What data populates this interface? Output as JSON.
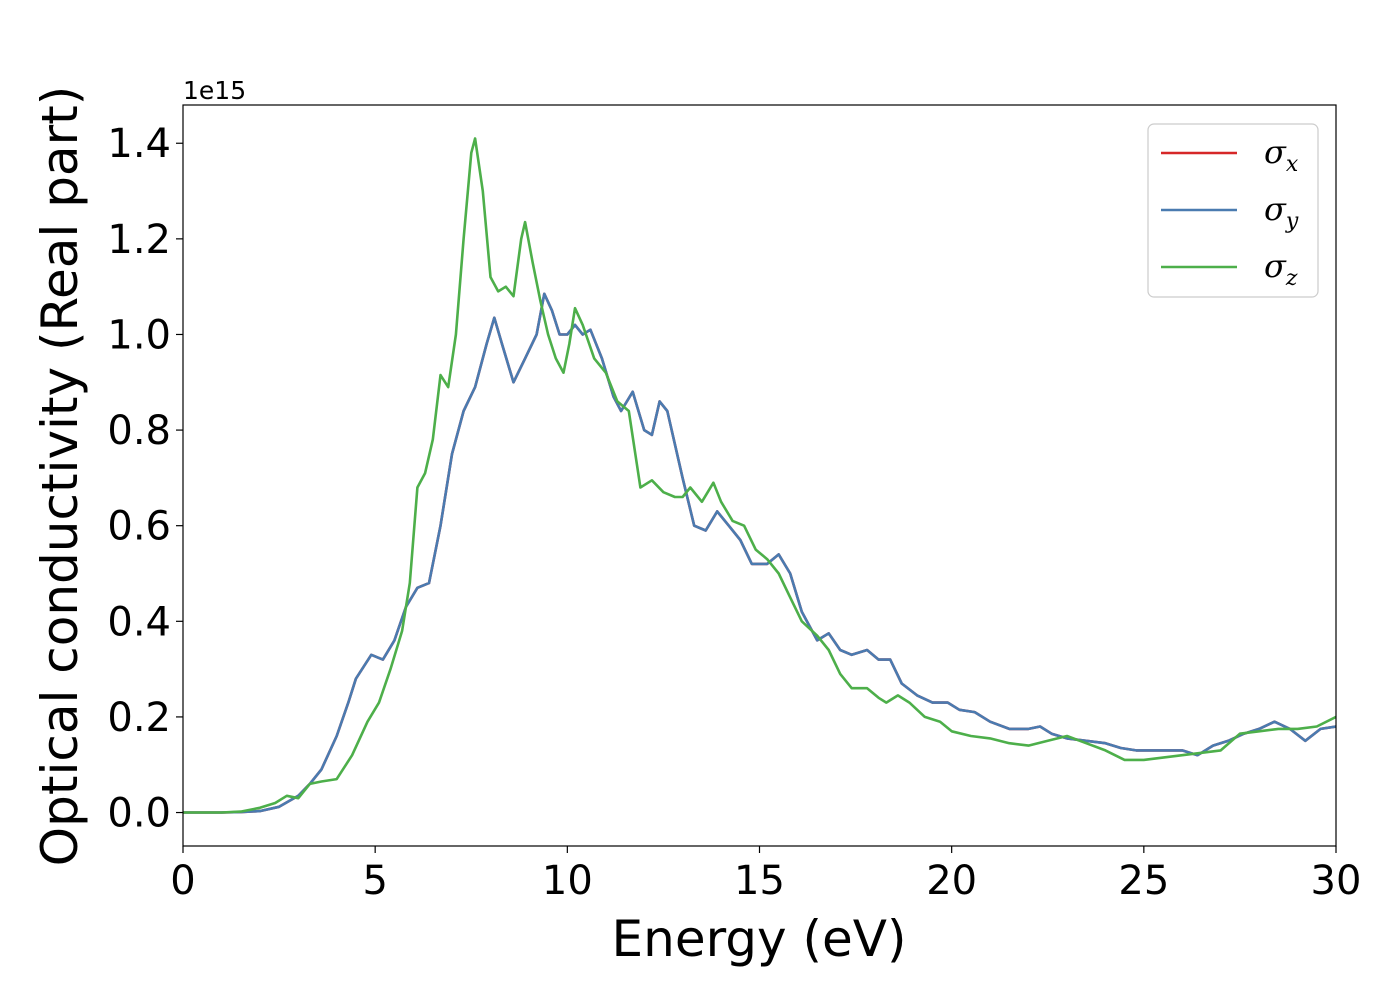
{
  "chart_data": {
    "type": "line",
    "title": "",
    "xlabel": "Energy (eV)",
    "ylabel": "Optical conductivity (Real part)",
    "y_offset_label": "1e15",
    "xlim": [
      0,
      30
    ],
    "ylim": [
      -0.07,
      1.48
    ],
    "x_ticks": [
      0,
      5,
      10,
      15,
      20,
      25,
      30
    ],
    "y_ticks": [
      0.0,
      0.2,
      0.4,
      0.6,
      0.8,
      1.0,
      1.2,
      1.4
    ],
    "x_tick_labels": [
      "0",
      "5",
      "10",
      "15",
      "20",
      "25",
      "30"
    ],
    "y_tick_labels": [
      "0.0",
      "0.2",
      "0.4",
      "0.6",
      "0.8",
      "1.0",
      "1.2",
      "1.4"
    ],
    "grid": false,
    "legend_position": "top-right",
    "series": [
      {
        "name": "σ",
        "subscript": "x",
        "color": "#d62728",
        "points": [
          [
            0,
            0
          ],
          [
            1,
            0
          ],
          [
            1.5,
            0.001
          ],
          [
            2,
            0.003
          ],
          [
            2.5,
            0.012
          ],
          [
            3,
            0.035
          ],
          [
            3.3,
            0.06
          ],
          [
            3.6,
            0.09
          ],
          [
            4,
            0.16
          ],
          [
            4.3,
            0.23
          ],
          [
            4.5,
            0.28
          ],
          [
            4.9,
            0.33
          ],
          [
            5.2,
            0.32
          ],
          [
            5.5,
            0.36
          ],
          [
            5.8,
            0.43
          ],
          [
            6.1,
            0.47
          ],
          [
            6.4,
            0.48
          ],
          [
            6.7,
            0.6
          ],
          [
            7,
            0.75
          ],
          [
            7.3,
            0.84
          ],
          [
            7.6,
            0.89
          ],
          [
            7.9,
            0.98
          ],
          [
            8.1,
            1.035
          ],
          [
            8.3,
            0.98
          ],
          [
            8.6,
            0.9
          ],
          [
            8.9,
            0.95
          ],
          [
            9.2,
            1.0
          ],
          [
            9.4,
            1.085
          ],
          [
            9.6,
            1.05
          ],
          [
            9.8,
            1.0
          ],
          [
            10,
            1.0
          ],
          [
            10.2,
            1.02
          ],
          [
            10.4,
            1.0
          ],
          [
            10.6,
            1.01
          ],
          [
            10.9,
            0.95
          ],
          [
            11.2,
            0.87
          ],
          [
            11.4,
            0.84
          ],
          [
            11.7,
            0.88
          ],
          [
            12,
            0.8
          ],
          [
            12.2,
            0.79
          ],
          [
            12.4,
            0.86
          ],
          [
            12.6,
            0.84
          ],
          [
            13,
            0.7
          ],
          [
            13.3,
            0.6
          ],
          [
            13.6,
            0.59
          ],
          [
            13.9,
            0.63
          ],
          [
            14.2,
            0.6
          ],
          [
            14.5,
            0.57
          ],
          [
            14.8,
            0.52
          ],
          [
            15.2,
            0.52
          ],
          [
            15.5,
            0.54
          ],
          [
            15.8,
            0.5
          ],
          [
            16.1,
            0.42
          ],
          [
            16.5,
            0.36
          ],
          [
            16.8,
            0.375
          ],
          [
            17.1,
            0.34
          ],
          [
            17.4,
            0.33
          ],
          [
            17.8,
            0.34
          ],
          [
            18.1,
            0.32
          ],
          [
            18.4,
            0.32
          ],
          [
            18.7,
            0.27
          ],
          [
            19.1,
            0.245
          ],
          [
            19.5,
            0.23
          ],
          [
            19.9,
            0.23
          ],
          [
            20.2,
            0.215
          ],
          [
            20.6,
            0.21
          ],
          [
            21,
            0.19
          ],
          [
            21.5,
            0.175
          ],
          [
            22,
            0.175
          ],
          [
            22.3,
            0.18
          ],
          [
            22.6,
            0.165
          ],
          [
            23,
            0.155
          ],
          [
            23.5,
            0.15
          ],
          [
            24,
            0.145
          ],
          [
            24.4,
            0.135
          ],
          [
            24.8,
            0.13
          ],
          [
            25.2,
            0.13
          ],
          [
            25.6,
            0.13
          ],
          [
            26,
            0.13
          ],
          [
            26.4,
            0.12
          ],
          [
            26.8,
            0.14
          ],
          [
            27.2,
            0.15
          ],
          [
            27.6,
            0.165
          ],
          [
            28,
            0.175
          ],
          [
            28.4,
            0.19
          ],
          [
            28.8,
            0.175
          ],
          [
            29.2,
            0.15
          ],
          [
            29.6,
            0.175
          ],
          [
            30,
            0.18
          ]
        ]
      },
      {
        "name": "σ",
        "subscript": "y",
        "color": "#4a7bb0",
        "points": [
          [
            0,
            0
          ],
          [
            1,
            0
          ],
          [
            1.5,
            0.001
          ],
          [
            2,
            0.003
          ],
          [
            2.5,
            0.012
          ],
          [
            3,
            0.035
          ],
          [
            3.3,
            0.06
          ],
          [
            3.6,
            0.09
          ],
          [
            4,
            0.16
          ],
          [
            4.3,
            0.23
          ],
          [
            4.5,
            0.28
          ],
          [
            4.9,
            0.33
          ],
          [
            5.2,
            0.32
          ],
          [
            5.5,
            0.36
          ],
          [
            5.8,
            0.43
          ],
          [
            6.1,
            0.47
          ],
          [
            6.4,
            0.48
          ],
          [
            6.7,
            0.6
          ],
          [
            7,
            0.75
          ],
          [
            7.3,
            0.84
          ],
          [
            7.6,
            0.89
          ],
          [
            7.9,
            0.98
          ],
          [
            8.1,
            1.035
          ],
          [
            8.3,
            0.98
          ],
          [
            8.6,
            0.9
          ],
          [
            8.9,
            0.95
          ],
          [
            9.2,
            1.0
          ],
          [
            9.4,
            1.085
          ],
          [
            9.6,
            1.05
          ],
          [
            9.8,
            1.0
          ],
          [
            10,
            1.0
          ],
          [
            10.2,
            1.02
          ],
          [
            10.4,
            1.0
          ],
          [
            10.6,
            1.01
          ],
          [
            10.9,
            0.95
          ],
          [
            11.2,
            0.87
          ],
          [
            11.4,
            0.84
          ],
          [
            11.7,
            0.88
          ],
          [
            12,
            0.8
          ],
          [
            12.2,
            0.79
          ],
          [
            12.4,
            0.86
          ],
          [
            12.6,
            0.84
          ],
          [
            13,
            0.7
          ],
          [
            13.3,
            0.6
          ],
          [
            13.6,
            0.59
          ],
          [
            13.9,
            0.63
          ],
          [
            14.2,
            0.6
          ],
          [
            14.5,
            0.57
          ],
          [
            14.8,
            0.52
          ],
          [
            15.2,
            0.52
          ],
          [
            15.5,
            0.54
          ],
          [
            15.8,
            0.5
          ],
          [
            16.1,
            0.42
          ],
          [
            16.5,
            0.36
          ],
          [
            16.8,
            0.375
          ],
          [
            17.1,
            0.34
          ],
          [
            17.4,
            0.33
          ],
          [
            17.8,
            0.34
          ],
          [
            18.1,
            0.32
          ],
          [
            18.4,
            0.32
          ],
          [
            18.7,
            0.27
          ],
          [
            19.1,
            0.245
          ],
          [
            19.5,
            0.23
          ],
          [
            19.9,
            0.23
          ],
          [
            20.2,
            0.215
          ],
          [
            20.6,
            0.21
          ],
          [
            21,
            0.19
          ],
          [
            21.5,
            0.175
          ],
          [
            22,
            0.175
          ],
          [
            22.3,
            0.18
          ],
          [
            22.6,
            0.165
          ],
          [
            23,
            0.155
          ],
          [
            23.5,
            0.15
          ],
          [
            24,
            0.145
          ],
          [
            24.4,
            0.135
          ],
          [
            24.8,
            0.13
          ],
          [
            25.2,
            0.13
          ],
          [
            25.6,
            0.13
          ],
          [
            26,
            0.13
          ],
          [
            26.4,
            0.12
          ],
          [
            26.8,
            0.14
          ],
          [
            27.2,
            0.15
          ],
          [
            27.6,
            0.165
          ],
          [
            28,
            0.175
          ],
          [
            28.4,
            0.19
          ],
          [
            28.8,
            0.175
          ],
          [
            29.2,
            0.15
          ],
          [
            29.6,
            0.175
          ],
          [
            30,
            0.18
          ]
        ]
      },
      {
        "name": "σ",
        "subscript": "z",
        "color": "#4daf4a",
        "points": [
          [
            0,
            0
          ],
          [
            1,
            0
          ],
          [
            1.5,
            0.002
          ],
          [
            2,
            0.01
          ],
          [
            2.4,
            0.02
          ],
          [
            2.7,
            0.035
          ],
          [
            3,
            0.03
          ],
          [
            3.3,
            0.06
          ],
          [
            3.6,
            0.065
          ],
          [
            4,
            0.07
          ],
          [
            4.4,
            0.12
          ],
          [
            4.8,
            0.19
          ],
          [
            5.1,
            0.23
          ],
          [
            5.4,
            0.3
          ],
          [
            5.7,
            0.38
          ],
          [
            5.9,
            0.48
          ],
          [
            6.1,
            0.68
          ],
          [
            6.3,
            0.71
          ],
          [
            6.5,
            0.78
          ],
          [
            6.7,
            0.915
          ],
          [
            6.9,
            0.89
          ],
          [
            7.1,
            1.0
          ],
          [
            7.3,
            1.2
          ],
          [
            7.5,
            1.38
          ],
          [
            7.6,
            1.41
          ],
          [
            7.8,
            1.3
          ],
          [
            8,
            1.12
          ],
          [
            8.2,
            1.09
          ],
          [
            8.4,
            1.1
          ],
          [
            8.6,
            1.08
          ],
          [
            8.8,
            1.2
          ],
          [
            8.9,
            1.235
          ],
          [
            9.1,
            1.15
          ],
          [
            9.3,
            1.07
          ],
          [
            9.5,
            1.0
          ],
          [
            9.7,
            0.95
          ],
          [
            9.9,
            0.92
          ],
          [
            10.05,
            0.98
          ],
          [
            10.2,
            1.055
          ],
          [
            10.4,
            1.02
          ],
          [
            10.7,
            0.95
          ],
          [
            11,
            0.92
          ],
          [
            11.3,
            0.86
          ],
          [
            11.6,
            0.84
          ],
          [
            11.9,
            0.68
          ],
          [
            12.2,
            0.695
          ],
          [
            12.5,
            0.67
          ],
          [
            12.8,
            0.66
          ],
          [
            13,
            0.66
          ],
          [
            13.2,
            0.68
          ],
          [
            13.5,
            0.65
          ],
          [
            13.8,
            0.69
          ],
          [
            14,
            0.65
          ],
          [
            14.3,
            0.61
          ],
          [
            14.6,
            0.6
          ],
          [
            14.9,
            0.55
          ],
          [
            15.2,
            0.53
          ],
          [
            15.5,
            0.5
          ],
          [
            15.8,
            0.45
          ],
          [
            16.1,
            0.4
          ],
          [
            16.5,
            0.37
          ],
          [
            16.8,
            0.34
          ],
          [
            17.1,
            0.29
          ],
          [
            17.4,
            0.26
          ],
          [
            17.8,
            0.26
          ],
          [
            18.1,
            0.24
          ],
          [
            18.3,
            0.23
          ],
          [
            18.6,
            0.245
          ],
          [
            18.9,
            0.23
          ],
          [
            19.3,
            0.2
          ],
          [
            19.7,
            0.19
          ],
          [
            20,
            0.17
          ],
          [
            20.5,
            0.16
          ],
          [
            21,
            0.155
          ],
          [
            21.5,
            0.145
          ],
          [
            22,
            0.14
          ],
          [
            22.5,
            0.15
          ],
          [
            23,
            0.16
          ],
          [
            23.5,
            0.145
          ],
          [
            24,
            0.13
          ],
          [
            24.5,
            0.11
          ],
          [
            25,
            0.11
          ],
          [
            25.5,
            0.115
          ],
          [
            26,
            0.12
          ],
          [
            26.5,
            0.125
          ],
          [
            27,
            0.13
          ],
          [
            27.5,
            0.165
          ],
          [
            28,
            0.17
          ],
          [
            28.5,
            0.175
          ],
          [
            29,
            0.175
          ],
          [
            29.5,
            0.18
          ],
          [
            30,
            0.2
          ]
        ]
      }
    ]
  }
}
